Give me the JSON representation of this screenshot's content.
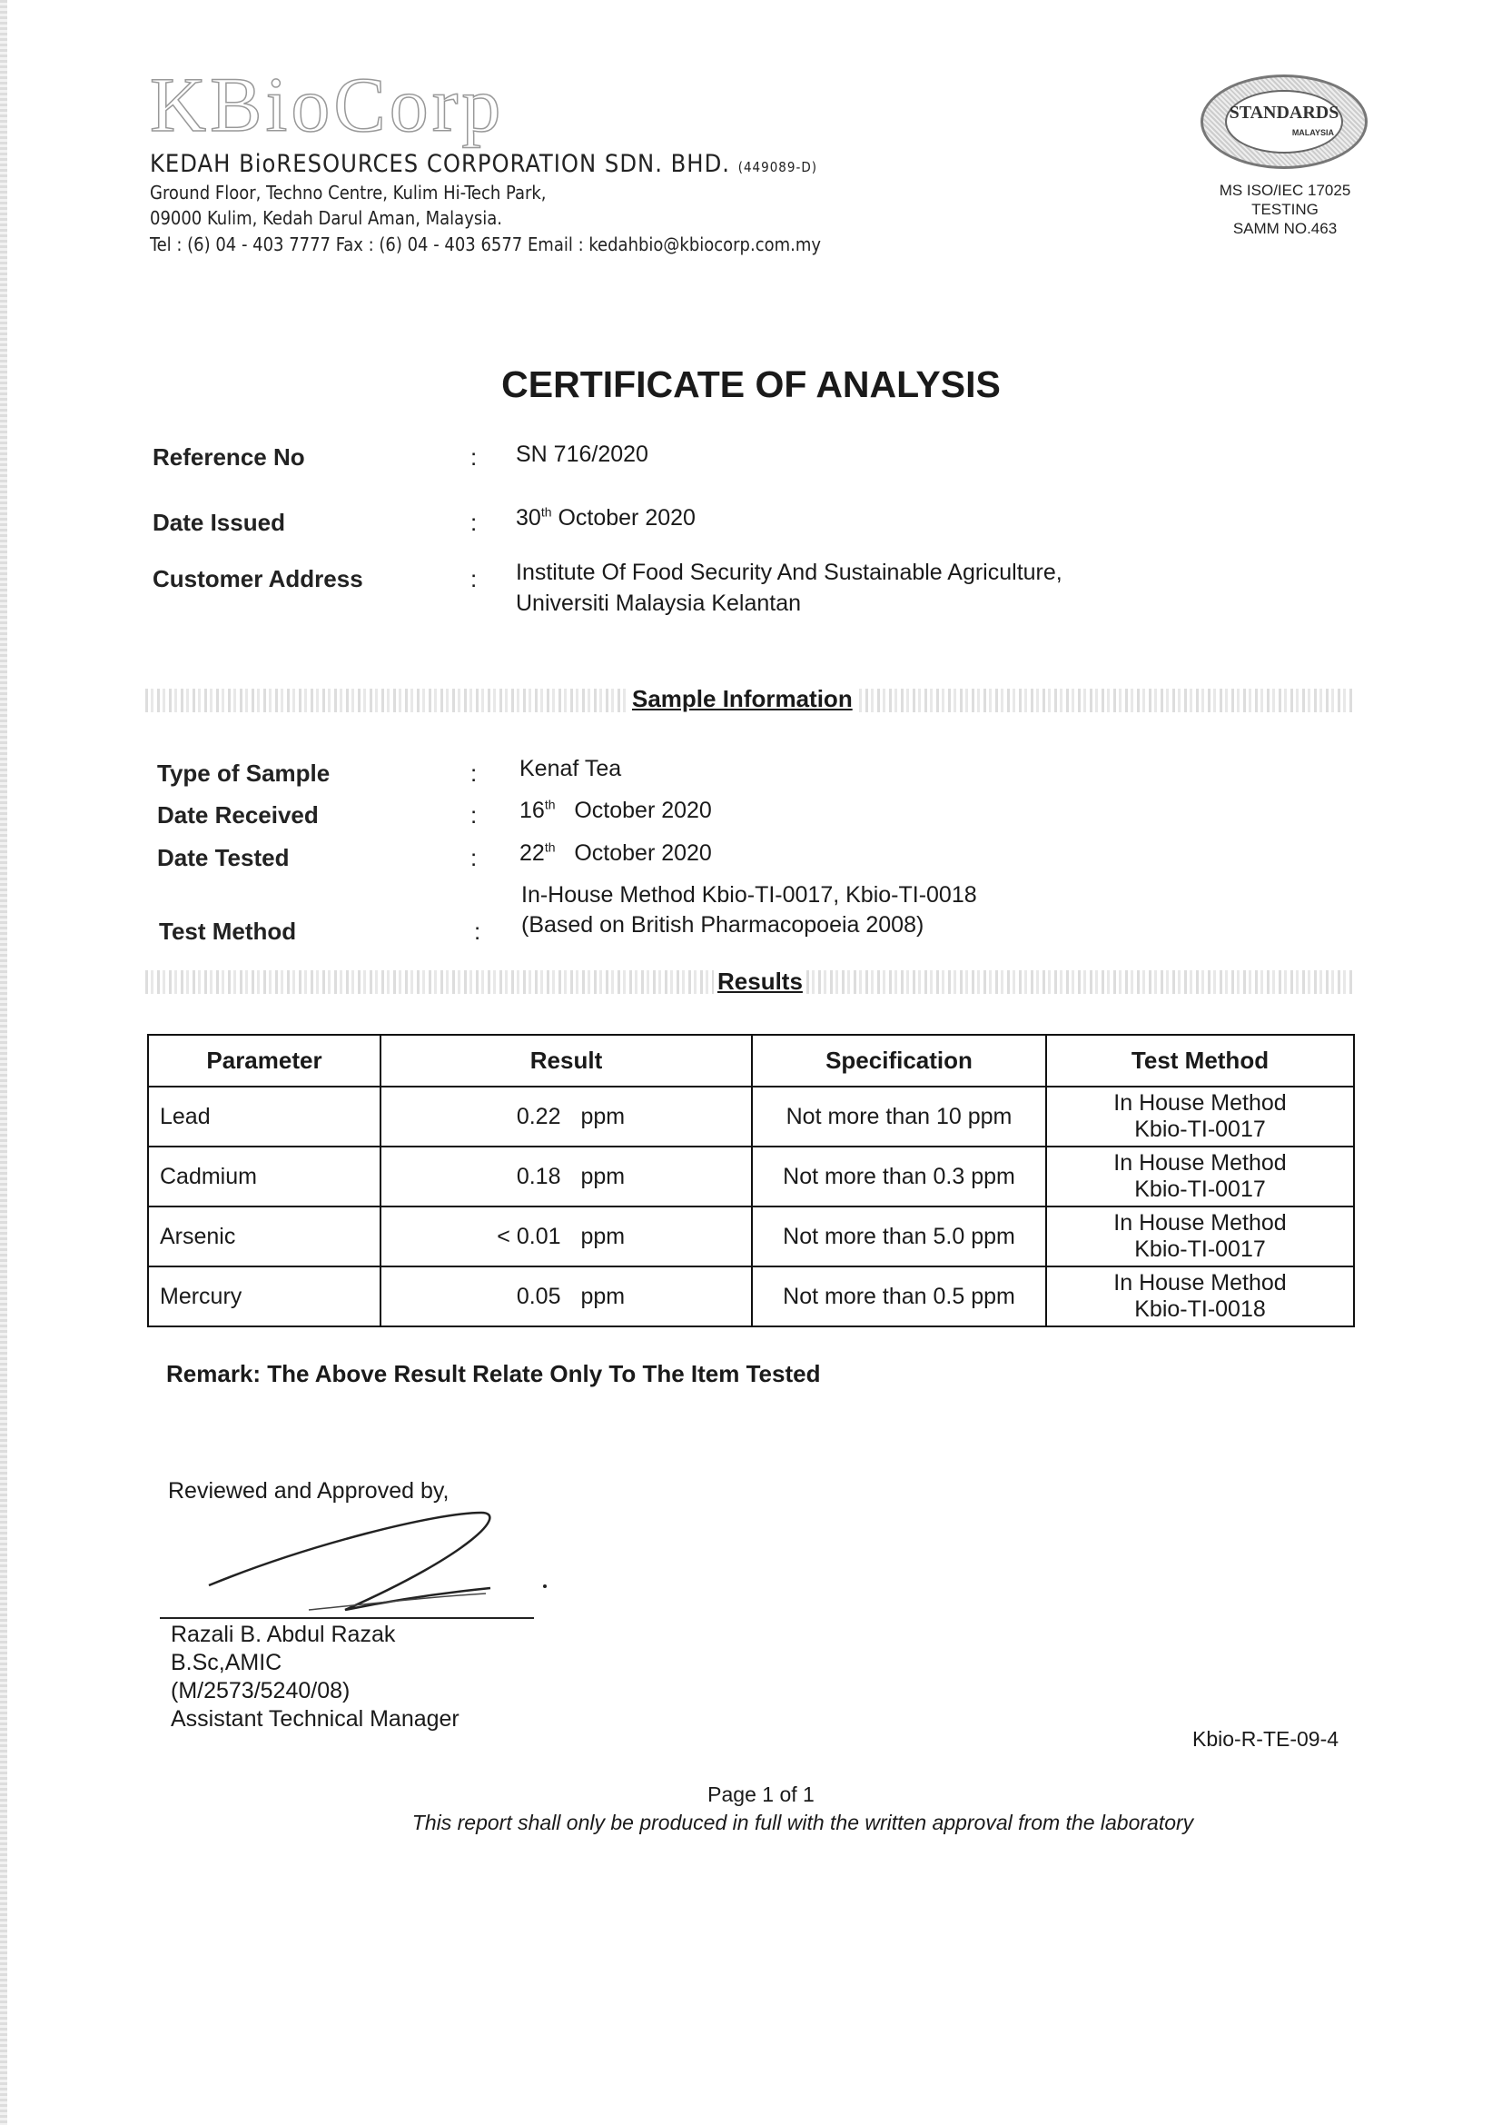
{
  "letterhead": {
    "logo_text": "KBioCorp",
    "company": "KEDAH BioRESOURCES CORPORATION SDN. BHD.",
    "reg_no": "(449089-D)",
    "address_line1": "Ground Floor, Techno Centre, Kulim Hi-Tech Park,",
    "address_line2": "09000 Kulim, Kedah Darul Aman, Malaysia.",
    "contact": "Tel :  (6) 04 - 403 7777   Fax : (6) 04 - 403 6577   Email : kedahbio@kbiocorp.com.my",
    "seal_text": "STANDARDS",
    "seal_subtext": "MALAYSIA",
    "accreditation": [
      "MS ISO/IEC 17025",
      "TESTING",
      "SAMM NO.463"
    ]
  },
  "title": "CERTIFICATE OF ANALYSIS",
  "header_fields": {
    "reference_label": "Reference No",
    "reference_value": "SN 716/2020",
    "date_issued_label": "Date Issued",
    "date_issued_day": "30",
    "date_issued_sup": "th",
    "date_issued_rest": "October  2020",
    "customer_label": "Customer  Address",
    "customer_line1": "Institute Of Food Security And Sustainable Agriculture,",
    "customer_line2": "Universiti Malaysia Kelantan"
  },
  "sample_section": {
    "heading": "Sample Information",
    "type_label": "Type of Sample",
    "type_value": "Kenaf Tea",
    "received_label": "Date Received",
    "received_day": "16",
    "received_sup": "th",
    "received_rest": "October  2020",
    "tested_label": "Date Tested",
    "tested_day": "22",
    "tested_sup": "th",
    "tested_rest": "October  2020",
    "method_label": "Test Method",
    "method_line1": "In-House Method Kbio-TI-0017, Kbio-TI-0018",
    "method_line2": "(Based on British Pharmacopoeia 2008)"
  },
  "colon": ":",
  "results": {
    "heading": "Results",
    "columns": [
      "Parameter",
      "Result",
      "Specification",
      "Test Method"
    ],
    "rows": [
      {
        "parameter": "Lead",
        "result": "0.22",
        "unit": "ppm",
        "spec": "Not more than 10 ppm",
        "method1": "In House Method",
        "method2": "Kbio-TI-0017"
      },
      {
        "parameter": "Cadmium",
        "result": "0.18",
        "unit": "ppm",
        "spec": "Not more than 0.3 ppm",
        "method1": "In House Method",
        "method2": "Kbio-TI-0017"
      },
      {
        "parameter": "Arsenic",
        "result": "< 0.01",
        "unit": "ppm",
        "spec": "Not more than 5.0 ppm",
        "method1": "In House Method",
        "method2": "Kbio-TI-0017"
      },
      {
        "parameter": "Mercury",
        "result": "0.05",
        "unit": "ppm",
        "spec": "Not more than 0.5 ppm",
        "method1": "In House Method",
        "method2": "Kbio-TI-0018"
      }
    ]
  },
  "remark": "Remark:  The Above Result Relate Only To The Item Tested",
  "approval": {
    "reviewed": "Reviewed and Approved by,",
    "name": "Razali B. Abdul Razak",
    "qualification": "B.Sc,AMIC",
    "reg": "(M/2573/5240/08)",
    "position": "Assistant Technical Manager"
  },
  "form_code": "Kbio-R-TE-09-4",
  "footer": {
    "page": "Page 1 of 1",
    "note": "This report shall only be produced in full with the written approval from the laboratory"
  }
}
